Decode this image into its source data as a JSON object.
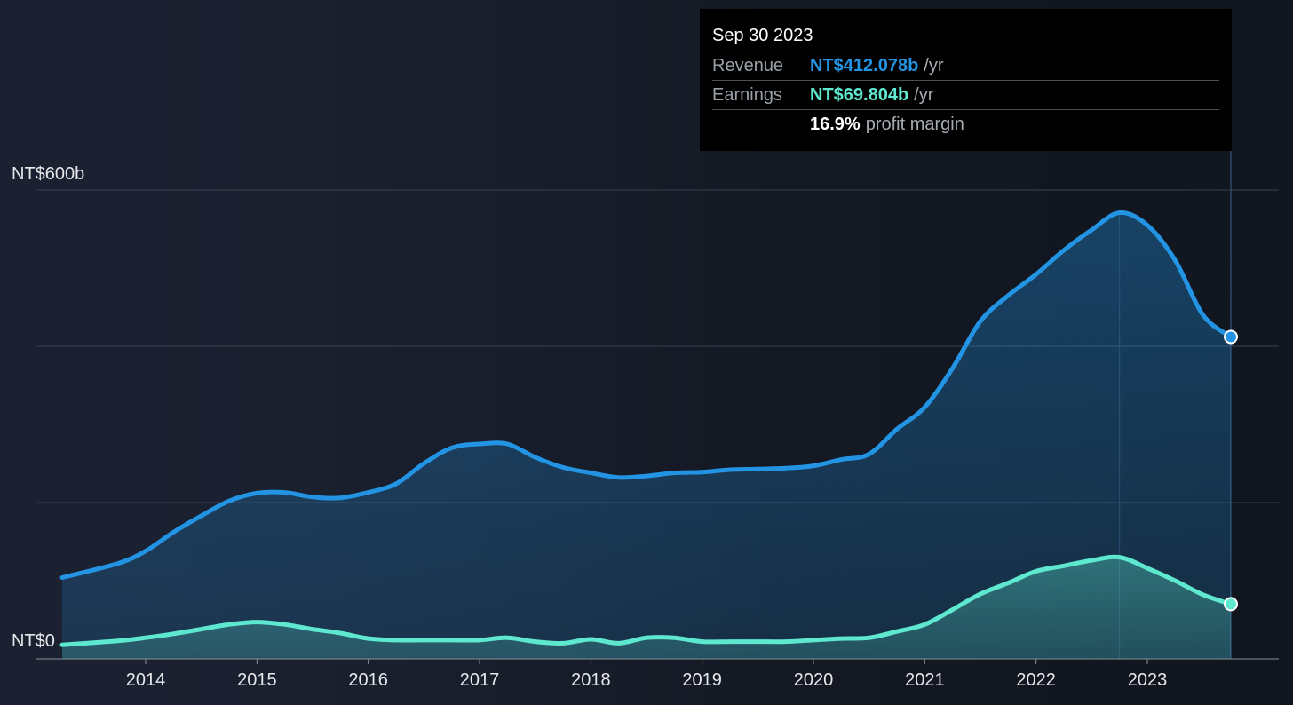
{
  "colors": {
    "background": "#1b2130",
    "revenue": "#2394e4",
    "earnings": "#5ee8cf",
    "grid": "#3a4150",
    "axis_text": "#e6e8eb",
    "tooltip_bg": "#000000",
    "tooltip_muted": "#9aa0a8"
  },
  "tooltip": {
    "date": "Sep 30 2023",
    "revenue_label": "Revenue",
    "revenue_value": "NT$412.078b",
    "revenue_unit": "/yr",
    "earnings_label": "Earnings",
    "earnings_value": "NT$69.804b",
    "earnings_unit": "/yr",
    "margin_value": "16.9%",
    "margin_label": "profit margin"
  },
  "chart_data": {
    "type": "area",
    "title": "",
    "xlabel": "",
    "ylabel": "",
    "y_unit": "NT$ billions",
    "ylim": [
      0,
      600
    ],
    "y_tick_labels": [
      {
        "value": 600,
        "label": "NT$600b"
      },
      {
        "value": 0,
        "label": "NT$0"
      }
    ],
    "y_gridlines": [
      0,
      200,
      400,
      600
    ],
    "x_range": [
      2013.25,
      2023.75
    ],
    "x_ticks": [
      2014,
      2015,
      2016,
      2017,
      2018,
      2019,
      2020,
      2021,
      2022,
      2023
    ],
    "highlight_x": 2023.75,
    "series": [
      {
        "name": "Revenue",
        "color": "#2394e4",
        "points": [
          [
            2013.25,
            104
          ],
          [
            2013.75,
            122
          ],
          [
            2014.0,
            138
          ],
          [
            2014.25,
            162
          ],
          [
            2014.5,
            183
          ],
          [
            2014.75,
            202
          ],
          [
            2015.0,
            212
          ],
          [
            2015.25,
            213
          ],
          [
            2015.5,
            207
          ],
          [
            2015.75,
            206
          ],
          [
            2016.0,
            213
          ],
          [
            2016.25,
            224
          ],
          [
            2016.5,
            250
          ],
          [
            2016.75,
            270
          ],
          [
            2017.0,
            275
          ],
          [
            2017.25,
            275
          ],
          [
            2017.5,
            258
          ],
          [
            2017.75,
            245
          ],
          [
            2018.0,
            238
          ],
          [
            2018.25,
            232
          ],
          [
            2018.5,
            234
          ],
          [
            2018.75,
            238
          ],
          [
            2019.0,
            239
          ],
          [
            2019.25,
            242
          ],
          [
            2019.5,
            243
          ],
          [
            2019.75,
            244
          ],
          [
            2020.0,
            247
          ],
          [
            2020.25,
            255
          ],
          [
            2020.5,
            262
          ],
          [
            2020.75,
            294
          ],
          [
            2021.0,
            322
          ],
          [
            2021.25,
            372
          ],
          [
            2021.5,
            432
          ],
          [
            2021.75,
            465
          ],
          [
            2022.0,
            492
          ],
          [
            2022.25,
            523
          ],
          [
            2022.5,
            549
          ],
          [
            2022.75,
            571
          ],
          [
            2023.0,
            555
          ],
          [
            2023.25,
            510
          ],
          [
            2023.5,
            440
          ],
          [
            2023.75,
            412
          ]
        ]
      },
      {
        "name": "Earnings",
        "color": "#5ee8cf",
        "points": [
          [
            2013.25,
            18
          ],
          [
            2013.75,
            23
          ],
          [
            2014.0,
            27
          ],
          [
            2014.25,
            32
          ],
          [
            2014.5,
            38
          ],
          [
            2014.75,
            44
          ],
          [
            2015.0,
            47
          ],
          [
            2015.25,
            44
          ],
          [
            2015.5,
            38
          ],
          [
            2015.75,
            33
          ],
          [
            2016.0,
            26
          ],
          [
            2016.25,
            24
          ],
          [
            2016.5,
            24
          ],
          [
            2016.75,
            24
          ],
          [
            2017.0,
            24
          ],
          [
            2017.25,
            27
          ],
          [
            2017.5,
            22
          ],
          [
            2017.75,
            20
          ],
          [
            2018.0,
            25
          ],
          [
            2018.25,
            20
          ],
          [
            2018.5,
            27
          ],
          [
            2018.75,
            27
          ],
          [
            2019.0,
            22
          ],
          [
            2019.25,
            22
          ],
          [
            2019.5,
            22
          ],
          [
            2019.75,
            22
          ],
          [
            2020.0,
            24
          ],
          [
            2020.25,
            26
          ],
          [
            2020.5,
            27
          ],
          [
            2020.75,
            35
          ],
          [
            2021.0,
            44
          ],
          [
            2021.25,
            63
          ],
          [
            2021.5,
            83
          ],
          [
            2021.75,
            97
          ],
          [
            2022.0,
            112
          ],
          [
            2022.25,
            119
          ],
          [
            2022.5,
            126
          ],
          [
            2022.75,
            130
          ],
          [
            2023.0,
            116
          ],
          [
            2023.25,
            100
          ],
          [
            2023.5,
            82
          ],
          [
            2023.75,
            70
          ]
        ]
      }
    ]
  }
}
